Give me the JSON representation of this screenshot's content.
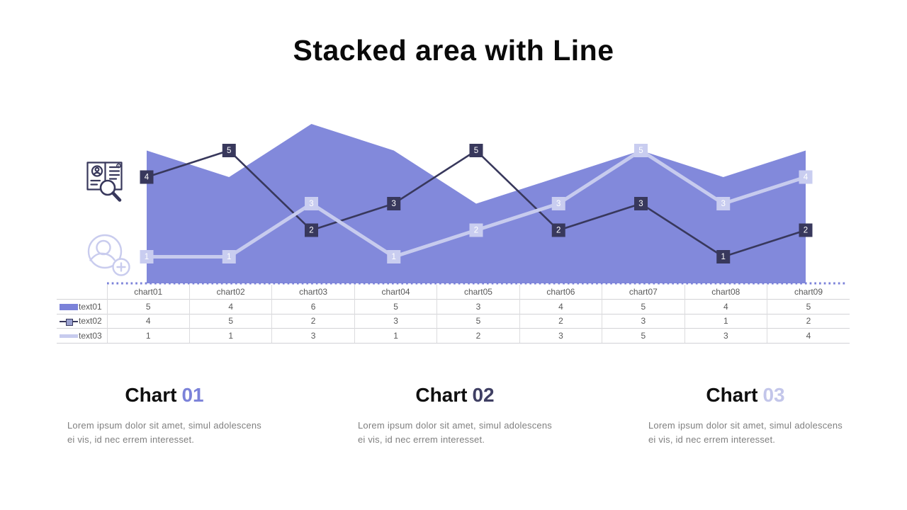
{
  "title": "Stacked area with Line",
  "chart_data": {
    "type": "area",
    "title": "Stacked area with Line",
    "categories": [
      "chart01",
      "chart02",
      "chart03",
      "chart04",
      "chart05",
      "chart06",
      "chart07",
      "chart08",
      "chart09"
    ],
    "series": [
      {
        "name": "text01",
        "type": "area",
        "color": "#8289DB",
        "values": [
          5,
          4,
          6,
          5,
          3,
          4,
          5,
          4,
          5
        ],
        "data_labels": false
      },
      {
        "name": "text02",
        "type": "line",
        "color": "#38385C",
        "label_bg": "#38385C",
        "label_text": "#FFFFFF",
        "values": [
          4,
          5,
          2,
          3,
          5,
          2,
          3,
          1,
          2
        ],
        "data_labels": true
      },
      {
        "name": "text03",
        "type": "line",
        "color": "#C7CBEE",
        "label_bg": "#C9CDF0",
        "label_text": "#FFFFFF",
        "values": [
          1,
          1,
          3,
          1,
          2,
          3,
          5,
          3,
          4
        ],
        "data_labels": true
      }
    ],
    "ylim": [
      0,
      6
    ],
    "grid": false,
    "legend_position": "table-left-column",
    "baseline": {
      "style": "dotted",
      "color": "#7B82D9"
    }
  },
  "table": {
    "corner_label": "",
    "columns": [
      "chart01",
      "chart02",
      "chart03",
      "chart04",
      "chart05",
      "chart06",
      "chart07",
      "chart08",
      "chart09"
    ],
    "rows": [
      {
        "label": "text01",
        "swatch": "sw-area",
        "values": [
          5,
          4,
          6,
          5,
          3,
          4,
          5,
          4,
          5
        ]
      },
      {
        "label": "text02",
        "swatch": "sw-line2",
        "values": [
          4,
          5,
          2,
          3,
          5,
          2,
          3,
          1,
          2
        ]
      },
      {
        "label": "text03",
        "swatch": "sw-line3",
        "values": [
          1,
          1,
          3,
          1,
          2,
          3,
          5,
          3,
          4
        ]
      }
    ]
  },
  "icons": {
    "top": "resume-search-icon",
    "bottom": "add-user-icon"
  },
  "sections": [
    {
      "heading": "Chart",
      "number": "01",
      "number_color": "#7B82D9",
      "body": "Lorem ipsum dolor sit amet, simul adolescens ei vis, id nec errem interesset."
    },
    {
      "heading": "Chart",
      "number": "02",
      "number_color": "#3F3F63",
      "body": "Lorem ipsum dolor sit amet, simul adolescens ei vis, id nec errem interesset."
    },
    {
      "heading": "Chart",
      "number": "03",
      "number_color": "#C3C6EA",
      "body": "Lorem ipsum dolor sit amet, simul adolescens ei vis, id nec errem interesset."
    }
  ]
}
